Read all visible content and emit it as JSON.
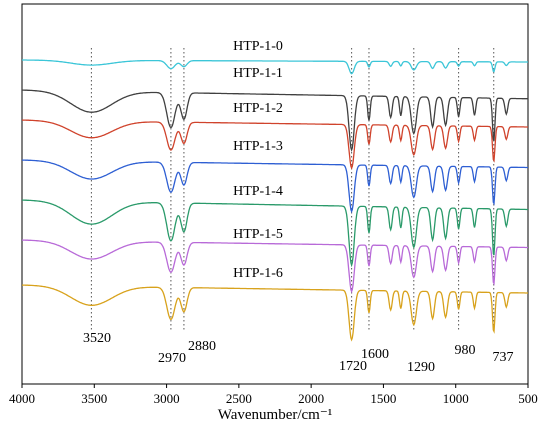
{
  "chart_data": {
    "type": "line",
    "xlabel": "Wavenumber/cm⁻¹",
    "ylabel": "",
    "xlim": [
      4000,
      500
    ],
    "x_ticks": [
      4000,
      3500,
      3000,
      2500,
      2000,
      1500,
      1000,
      500
    ],
    "grid": false,
    "series": [
      {
        "name": "HTP-1-0",
        "color": "#3cc6d8",
        "offset": 0,
        "x": [
          4000,
          3520,
          2970,
          1720,
          1290,
          737,
          500
        ],
        "y": [
          0.0,
          0.09,
          0.16,
          0.8,
          0.45,
          0.5,
          0.1
        ]
      },
      {
        "name": "HTP-1-1",
        "color": "#404040",
        "offset": 1,
        "x": [
          4000,
          3520,
          2970,
          1720,
          1290,
          737,
          500
        ],
        "y": [
          0.0,
          0.85,
          0.95,
          1.45,
          1.2,
          1.3,
          0.4
        ]
      },
      {
        "name": "HTP-1-2",
        "color": "#d0432c",
        "offset": 2,
        "x": [
          4000,
          3520,
          2970,
          1720,
          1290,
          737,
          500
        ],
        "y": [
          0.0,
          0.6,
          0.8,
          1.2,
          0.9,
          0.95,
          0.3
        ]
      },
      {
        "name": "HTP-1-3",
        "color": "#2e5fd3",
        "offset": 3,
        "x": [
          4000,
          3520,
          2970,
          1720,
          1290,
          737,
          500
        ],
        "y": [
          0.0,
          0.75,
          0.9,
          1.3,
          1.0,
          1.1,
          0.35
        ]
      },
      {
        "name": "HTP-1-4",
        "color": "#2a9a6a",
        "offset": 4,
        "x": [
          4000,
          3520,
          2970,
          1720,
          1290,
          737,
          500
        ],
        "y": [
          0.0,
          0.9,
          0.95,
          1.5,
          1.0,
          1.1,
          0.4
        ]
      },
      {
        "name": "HTP-1-5",
        "color": "#b86ad8",
        "offset": 5,
        "x": [
          4000,
          3520,
          2970,
          1720,
          1290,
          737,
          500
        ],
        "y": [
          0.0,
          0.65,
          0.85,
          1.2,
          0.9,
          0.95,
          0.3
        ]
      },
      {
        "name": "HTP-1-6",
        "color": "#d8a21c",
        "offset": 6,
        "x": [
          4000,
          3520,
          2970,
          1720,
          1290,
          737,
          500
        ],
        "y": [
          0.0,
          0.7,
          0.9,
          1.25,
          0.95,
          1.0,
          0.35
        ]
      }
    ],
    "annotations": [
      "3520",
      "2970",
      "2880",
      "1720",
      "1600",
      "1290",
      "980",
      "737"
    ],
    "peak_lines": [
      3520,
      2970,
      2880,
      1720,
      1600,
      1290,
      980,
      737
    ]
  }
}
